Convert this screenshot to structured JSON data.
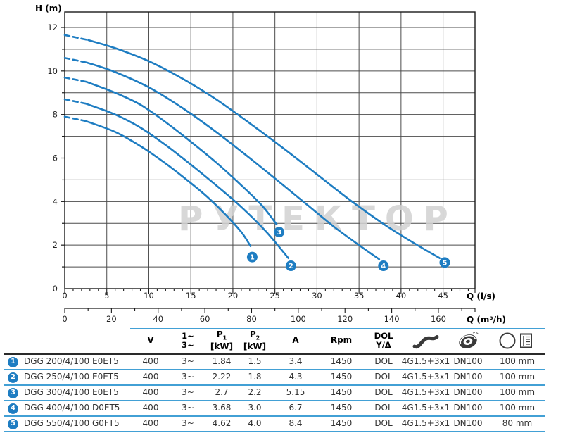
{
  "chart_data": {
    "type": "line",
    "watermark": "РУТЕКТОР",
    "x_axis": {
      "label": "Q (l/s)",
      "min": 0,
      "max": 48.8,
      "ticks": [
        0,
        5,
        10,
        15,
        20,
        25,
        30,
        35,
        40,
        45
      ],
      "minor_step": 1
    },
    "x_axis2": {
      "label": "Q (m³/h)",
      "ticks": [
        0,
        20,
        40,
        60,
        80,
        100,
        120,
        140,
        160
      ],
      "minor_step": 10,
      "m3h_per_lps": 3.6
    },
    "y_axis": {
      "label": "H (m)",
      "min": 0,
      "max": 12.7,
      "label_ticks": [
        0,
        2,
        4,
        6,
        8,
        10,
        12
      ],
      "grid_step": 1
    },
    "colors": {
      "curve": "#1e7dc2",
      "grid": "#4c4c4c",
      "border": "#1a1a1a",
      "watermark": "#d2d2d2",
      "tick_text": "#222"
    },
    "series": [
      {
        "name": "1",
        "model": "DGG 200/4/100 E0ET5",
        "dash": [
          [
            0,
            7.9
          ],
          [
            2.5,
            7.7
          ]
        ],
        "points": [
          [
            2.5,
            7.7
          ],
          [
            6,
            7.2
          ],
          [
            9,
            6.55
          ],
          [
            12,
            5.75
          ],
          [
            15,
            4.85
          ],
          [
            17,
            4.2
          ],
          [
            19,
            3.45
          ],
          [
            21,
            2.6
          ],
          [
            22.1,
            1.95
          ]
        ],
        "marker": {
          "x": 22.3,
          "y": 1.45
        }
      },
      {
        "name": "2",
        "model": "DGG 250/4/100 E0ET5",
        "dash": [
          [
            0,
            8.7
          ],
          [
            2.5,
            8.5
          ]
        ],
        "points": [
          [
            2.5,
            8.5
          ],
          [
            6,
            8.0
          ],
          [
            9,
            7.4
          ],
          [
            12,
            6.6
          ],
          [
            15,
            5.7
          ],
          [
            18,
            4.75
          ],
          [
            21,
            3.75
          ],
          [
            24,
            2.6
          ],
          [
            26.6,
            1.4
          ]
        ],
        "marker": {
          "x": 26.9,
          "y": 1.05
        }
      },
      {
        "name": "3",
        "model": "DGG 300/4/100 E0ET5",
        "dash": [
          [
            0,
            9.7
          ],
          [
            2.6,
            9.5
          ]
        ],
        "points": [
          [
            2.6,
            9.5
          ],
          [
            6,
            9.0
          ],
          [
            9,
            8.45
          ],
          [
            12,
            7.65
          ],
          [
            15,
            6.75
          ],
          [
            18,
            5.8
          ],
          [
            21,
            4.75
          ],
          [
            23.5,
            3.8
          ],
          [
            25.2,
            2.95
          ]
        ],
        "marker": {
          "x": 25.5,
          "y": 2.6
        }
      },
      {
        "name": "4",
        "model": "DGG 400/4/100 D0ET5",
        "dash": [
          [
            0,
            10.6
          ],
          [
            2.7,
            10.38
          ]
        ],
        "points": [
          [
            2.7,
            10.38
          ],
          [
            6,
            9.95
          ],
          [
            10,
            9.25
          ],
          [
            14,
            8.3
          ],
          [
            18,
            7.2
          ],
          [
            22,
            6.0
          ],
          [
            26,
            4.75
          ],
          [
            29,
            3.8
          ],
          [
            32,
            2.85
          ],
          [
            35,
            2.0
          ],
          [
            37.4,
            1.35
          ]
        ],
        "marker": {
          "x": 37.9,
          "y": 1.05
        }
      },
      {
        "name": "5",
        "model": "DGG 550/4/100 G0FT5",
        "dash": [
          [
            0,
            11.65
          ],
          [
            2.8,
            11.42
          ]
        ],
        "points": [
          [
            2.8,
            11.42
          ],
          [
            6,
            11.05
          ],
          [
            10,
            10.45
          ],
          [
            14,
            9.65
          ],
          [
            18,
            8.7
          ],
          [
            22,
            7.6
          ],
          [
            26,
            6.45
          ],
          [
            30,
            5.25
          ],
          [
            34,
            4.05
          ],
          [
            38,
            2.95
          ],
          [
            41.5,
            2.1
          ],
          [
            44.6,
            1.4
          ]
        ],
        "marker": {
          "x": 45.2,
          "y": 1.2
        }
      }
    ]
  },
  "table": {
    "columns": [
      {
        "id": "model",
        "text": ""
      },
      {
        "id": "voltage",
        "text": "V"
      },
      {
        "id": "phase",
        "lines": [
          "1~",
          "3~"
        ]
      },
      {
        "id": "p1",
        "base": "P",
        "sub": "1",
        "rest": " [kW]"
      },
      {
        "id": "p2",
        "base": "P",
        "sub": "2",
        "rest": " [kW]"
      },
      {
        "id": "current",
        "text": "A"
      },
      {
        "id": "rpm",
        "text": "Rpm"
      },
      {
        "id": "starting",
        "lines": [
          "DOL",
          "Y/Δ"
        ]
      },
      {
        "id": "cable",
        "icon": "cable-icon"
      },
      {
        "id": "impeller",
        "icon": "impeller-icon"
      },
      {
        "id": "outlet",
        "icon": "outlet-icon"
      }
    ],
    "rows": [
      {
        "badge": "1",
        "model": "DGG 200/4/100 E0ET5",
        "values": [
          "400",
          "3~",
          "1.84",
          "1.5",
          "3.4",
          "1450",
          "DOL",
          "4G1.5+3x1",
          "DN100",
          "100 mm"
        ]
      },
      {
        "badge": "2",
        "model": "DGG 250/4/100 E0ET5",
        "values": [
          "400",
          "3~",
          "2.22",
          "1.8",
          "4.3",
          "1450",
          "DOL",
          "4G1.5+3x1",
          "DN100",
          "100 mm"
        ]
      },
      {
        "badge": "3",
        "model": "DGG 300/4/100 E0ET5",
        "values": [
          "400",
          "3~",
          "2.7",
          "2.2",
          "5.15",
          "1450",
          "DOL",
          "4G1.5+3x1",
          "DN100",
          "100 mm"
        ]
      },
      {
        "badge": "4",
        "model": "DGG 400/4/100 D0ET5",
        "values": [
          "400",
          "3~",
          "3.68",
          "3.0",
          "6.7",
          "1450",
          "DOL",
          "4G1.5+3x1",
          "DN100",
          "100 mm"
        ]
      },
      {
        "badge": "5",
        "model": "DGG 550/4/100 G0FT5",
        "values": [
          "400",
          "3~",
          "4.62",
          "4.0",
          "8.4",
          "1450",
          "DOL",
          "4G1.5+3x1",
          "DN100",
          "80 mm"
        ]
      }
    ]
  }
}
